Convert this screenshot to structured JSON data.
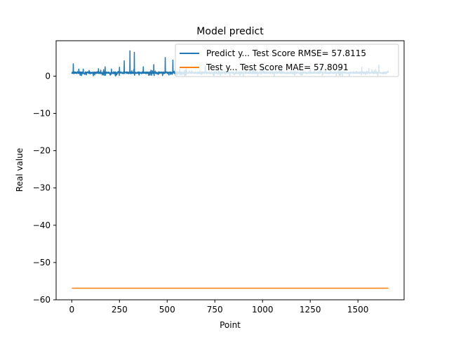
{
  "chart_data": {
    "type": "line",
    "title": "Model predict",
    "xlabel": "Point",
    "ylabel": "Real value",
    "xlim": [
      -82,
      1742
    ],
    "ylim": [
      -60,
      9.5
    ],
    "xticks": [
      0,
      250,
      500,
      750,
      1000,
      1250,
      1500
    ],
    "yticks": [
      0,
      -10,
      -20,
      -30,
      -40,
      -50,
      -60
    ],
    "grid": false,
    "legend_position": "top-right",
    "series": [
      {
        "name": "Predict y... Test Score RMSE= 57.8115",
        "color": "#1f77b4",
        "n_points": 1660,
        "baseline": 0.9,
        "spikes": [
          {
            "x": 8,
            "y": 3.3
          },
          {
            "x": 60,
            "y": 1.9
          },
          {
            "x": 140,
            "y": 2.0
          },
          {
            "x": 175,
            "y": 2.5
          },
          {
            "x": 250,
            "y": 2.4
          },
          {
            "x": 275,
            "y": 4.1
          },
          {
            "x": 305,
            "y": 6.8
          },
          {
            "x": 328,
            "y": 6.4
          },
          {
            "x": 375,
            "y": 2.5
          },
          {
            "x": 430,
            "y": 3.1
          },
          {
            "x": 490,
            "y": 5.0
          },
          {
            "x": 530,
            "y": 4.3
          },
          {
            "x": 600,
            "y": 2.0
          },
          {
            "x": 700,
            "y": 2.6
          },
          {
            "x": 820,
            "y": 2.3
          },
          {
            "x": 950,
            "y": 1.9
          },
          {
            "x": 1100,
            "y": 2.2
          },
          {
            "x": 1250,
            "y": 1.8
          },
          {
            "x": 1400,
            "y": 2.1
          },
          {
            "x": 1520,
            "y": 2.4
          },
          {
            "x": 1610,
            "y": 3.0
          }
        ]
      },
      {
        "name": "Test y... Test Score MAE= 57.8091",
        "color": "#ff7f0e",
        "x": [
          0,
          1660
        ],
        "y": [
          -56.9,
          -56.9
        ]
      }
    ]
  }
}
